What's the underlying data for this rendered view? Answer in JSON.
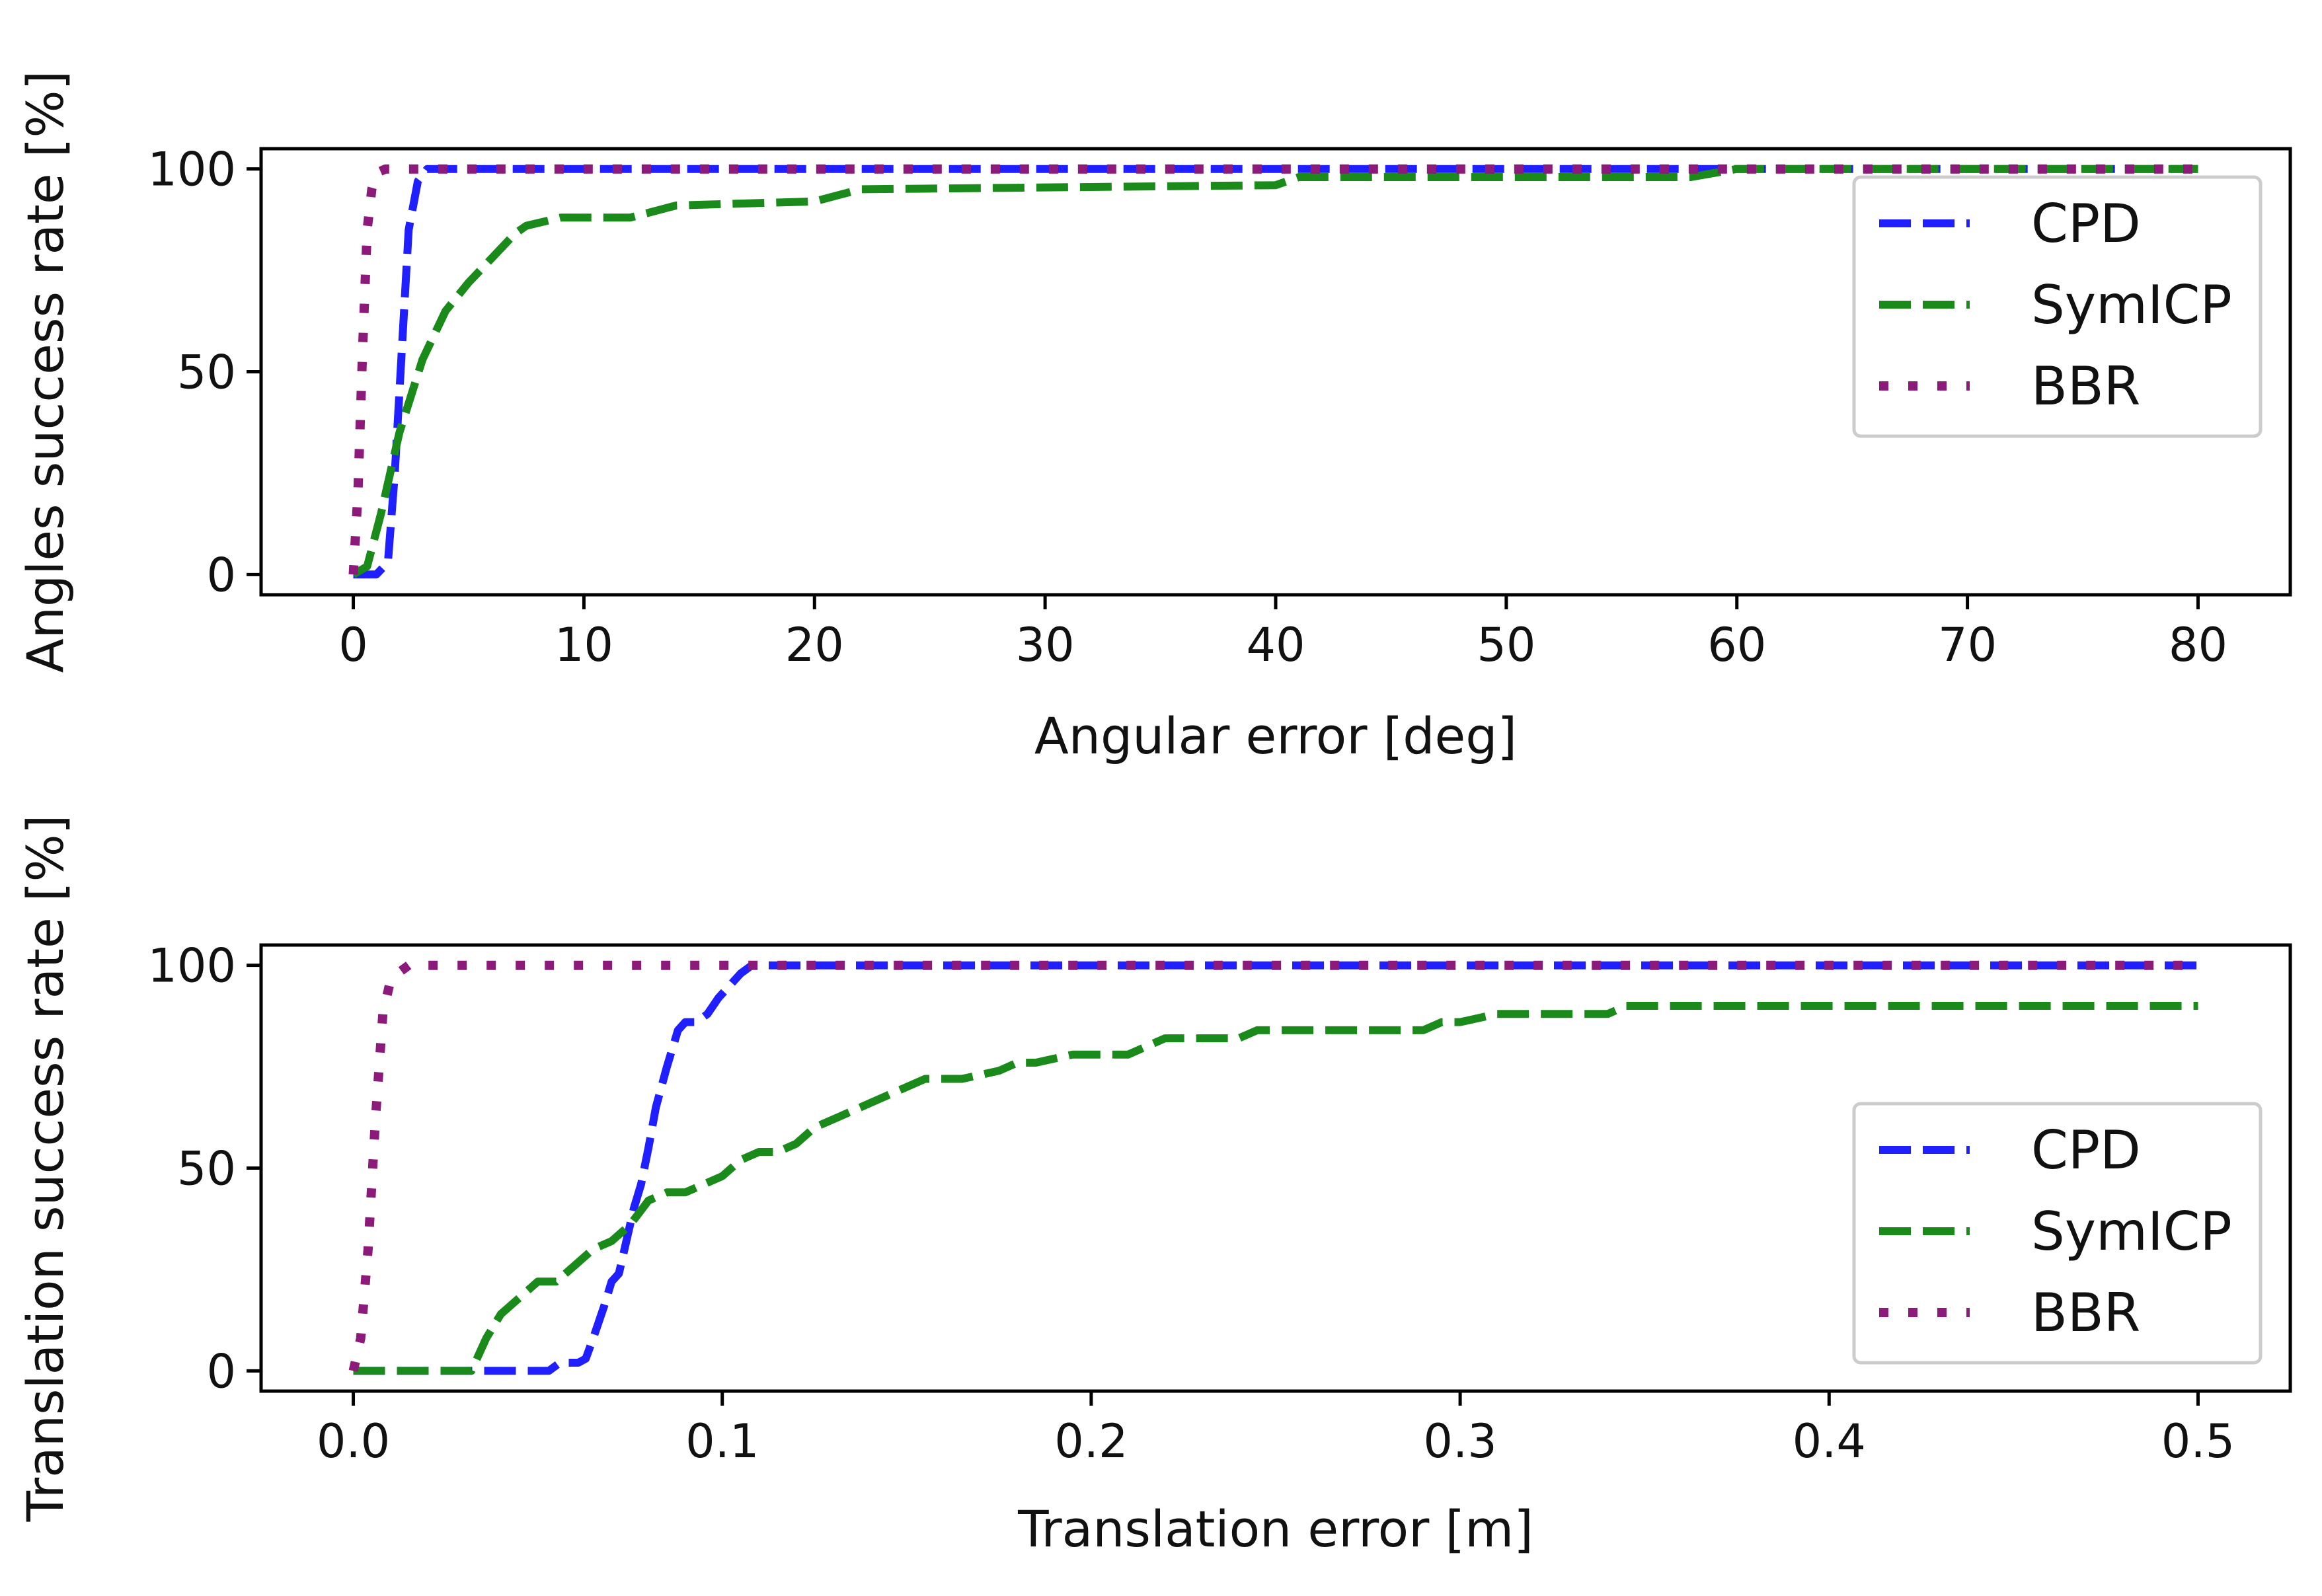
{
  "chart_data": [
    {
      "type": "line",
      "title": "",
      "xlabel": "Angular error [deg]",
      "ylabel": "Angles success rate [%]",
      "xlim": [
        -4,
        84
      ],
      "ylim": [
        -5,
        105
      ],
      "xticks": [
        0,
        10,
        20,
        30,
        40,
        50,
        60,
        70,
        80
      ],
      "xtick_labels": [
        "0",
        "10",
        "20",
        "30",
        "40",
        "50",
        "60",
        "70",
        "80"
      ],
      "yticks": [
        0,
        50,
        100
      ],
      "ytick_labels": [
        "0",
        "50",
        "100"
      ],
      "grid": false,
      "legend_position": "right",
      "series": [
        {
          "name": "CPD",
          "color": "#1f1fff",
          "style": "dashed",
          "x": [
            0,
            1.0,
            1.5,
            1.8,
            2.1,
            2.4,
            2.8,
            3.2,
            80
          ],
          "y": [
            0,
            0,
            3,
            25,
            55,
            85,
            97,
            100,
            100
          ]
        },
        {
          "name": "SymICP",
          "color": "#1a8a1a",
          "style": "dashed",
          "x": [
            0,
            0.6,
            1.2,
            2.0,
            3.0,
            4.0,
            5.0,
            6.0,
            7.0,
            7.5,
            9.0,
            12.0,
            14.0,
            20.0,
            22.0,
            40.0,
            41.0,
            58.0,
            60.0,
            80.0
          ],
          "y": [
            0,
            2,
            15,
            35,
            53,
            65,
            72,
            78,
            84,
            86,
            88,
            88,
            91,
            92,
            95,
            96,
            98,
            98,
            100,
            100
          ],
          "step": false
        },
        {
          "name": "BBR",
          "color": "#8b1a7a",
          "style": "dotted",
          "x": [
            0,
            0.2,
            0.4,
            0.6,
            0.8,
            1.0,
            1.4,
            80
          ],
          "y": [
            0,
            20,
            55,
            85,
            95,
            99,
            100,
            100
          ]
        }
      ]
    },
    {
      "type": "line",
      "title": "",
      "xlabel": "Translation error [m]",
      "ylabel": "Translation success rate [%]",
      "xlim": [
        -0.025,
        0.525
      ],
      "ylim": [
        -5,
        105
      ],
      "xticks": [
        0.0,
        0.1,
        0.2,
        0.3,
        0.4,
        0.5
      ],
      "xtick_labels": [
        "0.0",
        "0.1",
        "0.2",
        "0.3",
        "0.4",
        "0.5"
      ],
      "yticks": [
        0,
        50,
        100
      ],
      "ytick_labels": [
        "0",
        "50",
        "100"
      ],
      "grid": false,
      "legend_position": "right",
      "series": [
        {
          "name": "CPD",
          "color": "#1f1fff",
          "style": "dashed",
          "x": [
            0,
            0.053,
            0.056,
            0.061,
            0.063,
            0.065,
            0.068,
            0.07,
            0.072,
            0.074,
            0.076,
            0.078,
            0.08,
            0.082,
            0.085,
            0.088,
            0.09,
            0.093,
            0.096,
            0.099,
            0.102,
            0.105,
            0.108,
            0.5
          ],
          "y": [
            0,
            0,
            2,
            2,
            3,
            8,
            16,
            22,
            24,
            32,
            40,
            46,
            55,
            65,
            75,
            84,
            86,
            86,
            88,
            92,
            95,
            98,
            100,
            100
          ]
        },
        {
          "name": "SymICP",
          "color": "#1a8a1a",
          "style": "dashed",
          "x": [
            0,
            0.032,
            0.036,
            0.04,
            0.045,
            0.05,
            0.055,
            0.06,
            0.065,
            0.07,
            0.075,
            0.08,
            0.085,
            0.09,
            0.095,
            0.1,
            0.105,
            0.11,
            0.115,
            0.12,
            0.125,
            0.13,
            0.135,
            0.14,
            0.145,
            0.15,
            0.155,
            0.16,
            0.165,
            0.17,
            0.175,
            0.18,
            0.185,
            0.195,
            0.2,
            0.21,
            0.215,
            0.22,
            0.23,
            0.24,
            0.245,
            0.25,
            0.28,
            0.29,
            0.295,
            0.3,
            0.305,
            0.31,
            0.33,
            0.34,
            0.345,
            0.5
          ],
          "y": [
            0,
            0,
            8,
            14,
            18,
            22,
            22,
            26,
            30,
            32,
            36,
            42,
            44,
            44,
            46,
            48,
            52,
            54,
            54,
            56,
            60,
            62,
            64,
            66,
            68,
            70,
            72,
            72,
            72,
            73,
            74,
            76,
            76,
            78,
            78,
            78,
            80,
            82,
            82,
            82,
            84,
            84,
            84,
            84,
            86,
            86,
            87,
            88,
            88,
            88,
            90,
            90
          ]
        },
        {
          "name": "BBR",
          "color": "#8b1a7a",
          "style": "dotted",
          "x": [
            0,
            0.002,
            0.004,
            0.006,
            0.008,
            0.01,
            0.012,
            0.015,
            0.5
          ],
          "y": [
            0,
            8,
            30,
            62,
            88,
            96,
            98,
            100,
            100
          ]
        }
      ]
    }
  ]
}
